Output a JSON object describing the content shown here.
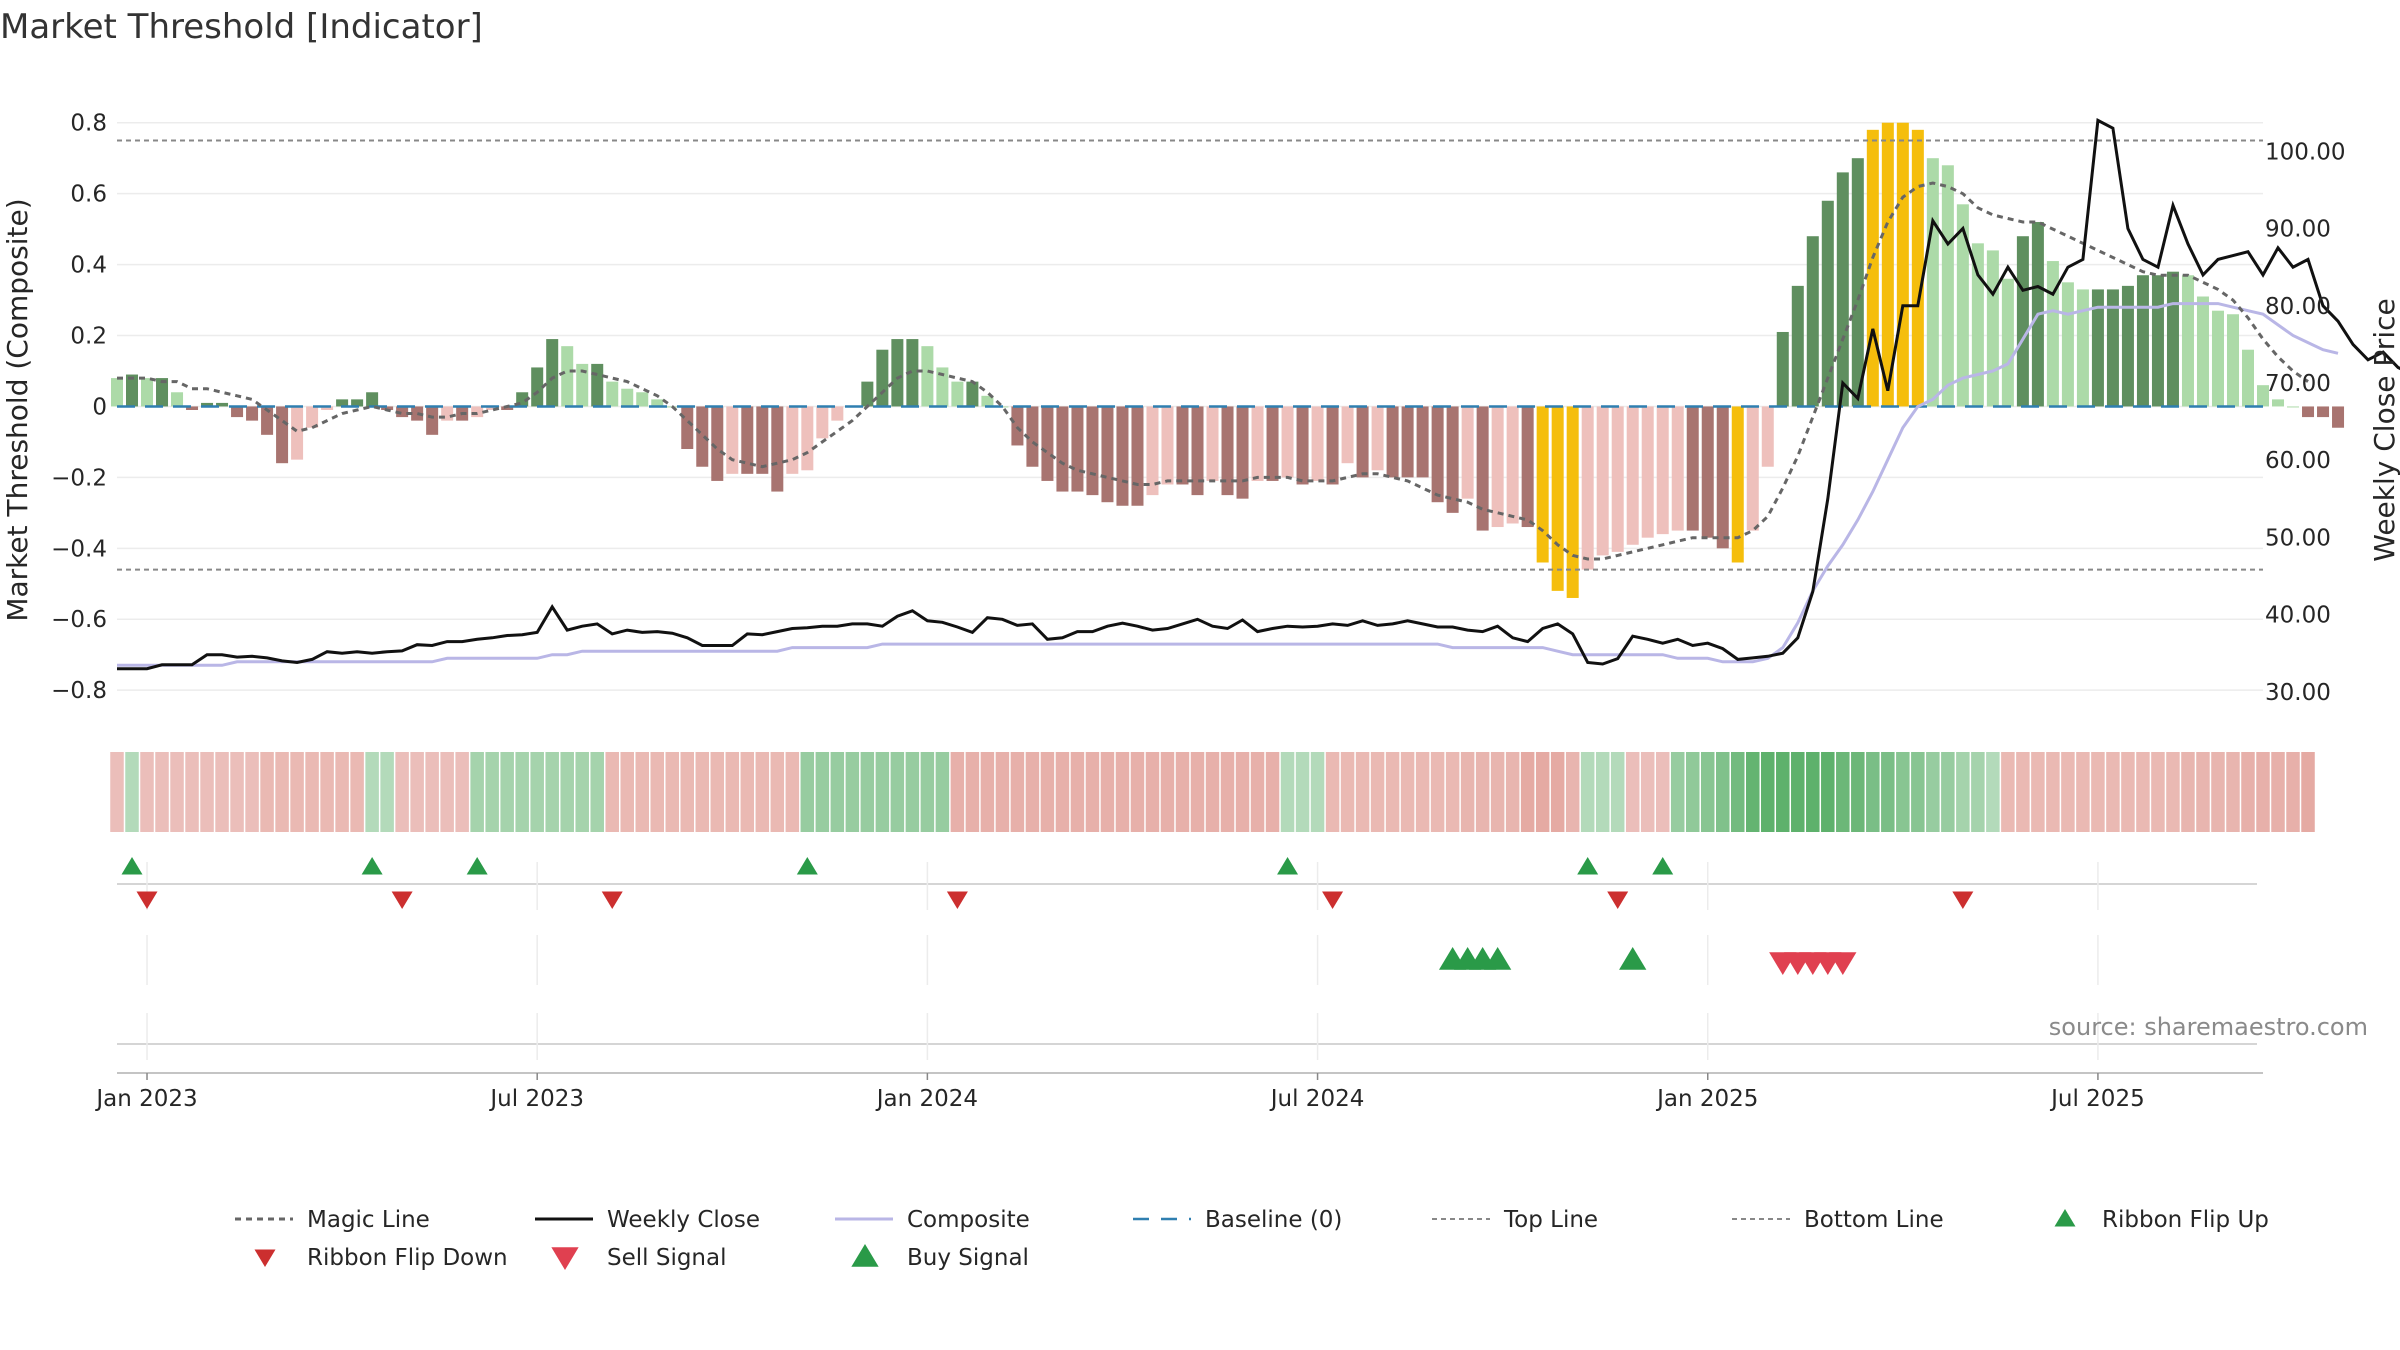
{
  "title": "Market Threshold [Indicator]",
  "source": "source: sharemaestro.com",
  "chart_data": {
    "type": "bar",
    "title": "Market Threshold [Indicator]",
    "ylabel_left": "Market Threshold (Composite)",
    "ylabel_right": "Weekly Close Price",
    "ylim_left": [
      -0.87,
      0.85
    ],
    "ylim_right": [
      27.0,
      106.0
    ],
    "y_ticks_left": [
      {
        "v": 0.8,
        "label": "0.8"
      },
      {
        "v": 0.6,
        "label": "0.6"
      },
      {
        "v": 0.4,
        "label": "0.4"
      },
      {
        "v": 0.2,
        "label": "0.2"
      },
      {
        "v": 0,
        "label": "0"
      },
      {
        "v": -0.2,
        "label": "−0.2"
      },
      {
        "v": -0.4,
        "label": "−0.4"
      },
      {
        "v": -0.6,
        "label": "−0.6"
      },
      {
        "v": -0.8,
        "label": "−0.8"
      }
    ],
    "y_ticks_right": [
      {
        "v": 100,
        "label": "100.00"
      },
      {
        "v": 90,
        "label": "90.00"
      },
      {
        "v": 80,
        "label": "80.00"
      },
      {
        "v": 70,
        "label": "70.00"
      },
      {
        "v": 60,
        "label": "60.00"
      },
      {
        "v": 50,
        "label": "50.00"
      },
      {
        "v": 40,
        "label": "40.00"
      },
      {
        "v": 30,
        "label": "30.00"
      }
    ],
    "x_ticks": [
      {
        "week": 2,
        "label": "Jan 2023"
      },
      {
        "week": 28,
        "label": "Jul 2023"
      },
      {
        "week": 54,
        "label": "Jan 2024"
      },
      {
        "week": 80,
        "label": "Jul 2024"
      },
      {
        "week": 106,
        "label": "Jan 2025"
      },
      {
        "week": 132,
        "label": "Jul 2025"
      }
    ],
    "x_range_weeks": [
      0,
      143
    ],
    "top_line": 0.75,
    "bottom_line": -0.46,
    "grid": true,
    "colors": {
      "pos_strong": "#5f8f5f",
      "pos_weak": "#acdaa8",
      "neg_strong": "#a87470",
      "neg_weak": "#eec0bc",
      "extreme": "#f5be0c",
      "weekly_close": "#111111",
      "composite": "#b9b6e6",
      "magic": "#666666",
      "baseline": "#2f7fb0",
      "threshold": "#888888",
      "flip_up": "#2a9a48",
      "flip_down": "#cc2f2f",
      "buy": "#2a9a48",
      "sell": "#e04050",
      "ribbon_green": "#42a352",
      "ribbon_red": "#d6786e"
    },
    "composite_bars": [
      0.08,
      0.09,
      0.08,
      0.08,
      0.04,
      -0.01,
      0.01,
      0.01,
      -0.03,
      -0.04,
      -0.08,
      -0.16,
      -0.15,
      -0.06,
      -0.01,
      0.02,
      0.02,
      0.04,
      -0.01,
      -0.03,
      -0.04,
      -0.08,
      -0.04,
      -0.04,
      -0.03,
      -0.01,
      -0.01,
      0.04,
      0.11,
      0.19,
      0.17,
      0.12,
      0.12,
      0.07,
      0.05,
      0.04,
      0.02,
      0.0,
      -0.12,
      -0.17,
      -0.21,
      -0.19,
      -0.19,
      -0.19,
      -0.24,
      -0.19,
      -0.18,
      -0.09,
      -0.04,
      0.0,
      0.07,
      0.16,
      0.19,
      0.19,
      0.17,
      0.11,
      0.07,
      0.07,
      0.03,
      0.0,
      -0.11,
      -0.17,
      -0.21,
      -0.24,
      -0.24,
      -0.25,
      -0.27,
      -0.28,
      -0.28,
      -0.25,
      -0.22,
      -0.22,
      -0.25,
      -0.21,
      -0.25,
      -0.26,
      -0.21,
      -0.21,
      -0.2,
      -0.22,
      -0.21,
      -0.22,
      -0.16,
      -0.2,
      -0.18,
      -0.2,
      -0.2,
      -0.2,
      -0.27,
      -0.3,
      -0.26,
      -0.35,
      -0.34,
      -0.33,
      -0.34,
      -0.44,
      -0.52,
      -0.54,
      -0.46,
      -0.42,
      -0.41,
      -0.39,
      -0.37,
      -0.36,
      -0.35,
      -0.35,
      -0.37,
      -0.4,
      -0.44,
      -0.35,
      -0.17,
      0.21,
      0.34,
      0.48,
      0.58,
      0.66,
      0.7,
      0.78,
      0.8,
      0.8,
      0.78,
      0.7,
      0.68,
      0.57,
      0.46,
      0.44,
      0.36,
      0.48,
      0.52,
      0.41,
      0.35,
      0.33,
      0.33,
      0.33,
      0.34,
      0.37,
      0.37,
      0.38,
      0.37,
      0.31,
      0.27,
      0.26,
      0.16,
      0.06,
      0.02,
      0.0,
      -0.03,
      -0.03,
      -0.06
    ],
    "magic_line": [
      0.08,
      0.08,
      0.08,
      0.07,
      0.07,
      0.05,
      0.05,
      0.04,
      0.03,
      0.02,
      -0.01,
      -0.04,
      -0.07,
      -0.06,
      -0.04,
      -0.02,
      -0.01,
      0.0,
      -0.01,
      -0.02,
      -0.02,
      -0.03,
      -0.03,
      -0.02,
      -0.02,
      -0.01,
      0.0,
      0.01,
      0.04,
      0.08,
      0.1,
      0.1,
      0.09,
      0.08,
      0.07,
      0.05,
      0.03,
      0.0,
      -0.04,
      -0.08,
      -0.12,
      -0.15,
      -0.16,
      -0.17,
      -0.16,
      -0.15,
      -0.13,
      -0.1,
      -0.07,
      -0.04,
      0.0,
      0.04,
      0.08,
      0.1,
      0.1,
      0.09,
      0.08,
      0.07,
      0.04,
      0.0,
      -0.06,
      -0.1,
      -0.13,
      -0.16,
      -0.18,
      -0.19,
      -0.2,
      -0.21,
      -0.22,
      -0.22,
      -0.21,
      -0.21,
      -0.21,
      -0.21,
      -0.21,
      -0.21,
      -0.2,
      -0.2,
      -0.2,
      -0.21,
      -0.21,
      -0.21,
      -0.2,
      -0.19,
      -0.19,
      -0.2,
      -0.21,
      -0.23,
      -0.25,
      -0.26,
      -0.27,
      -0.29,
      -0.3,
      -0.31,
      -0.32,
      -0.35,
      -0.39,
      -0.42,
      -0.43,
      -0.43,
      -0.42,
      -0.41,
      -0.4,
      -0.39,
      -0.38,
      -0.37,
      -0.37,
      -0.37,
      -0.37,
      -0.35,
      -0.31,
      -0.23,
      -0.14,
      -0.03,
      0.08,
      0.19,
      0.3,
      0.42,
      0.52,
      0.59,
      0.62,
      0.63,
      0.62,
      0.6,
      0.56,
      0.54,
      0.53,
      0.52,
      0.52,
      0.5,
      0.48,
      0.46,
      0.44,
      0.42,
      0.4,
      0.38,
      0.37,
      0.37,
      0.37,
      0.35,
      0.33,
      0.3,
      0.25,
      0.19,
      0.14,
      0.1,
      0.07
    ],
    "composite_line": [
      -0.73,
      -0.73,
      -0.73,
      -0.73,
      -0.73,
      -0.73,
      -0.73,
      -0.73,
      -0.72,
      -0.72,
      -0.72,
      -0.72,
      -0.72,
      -0.72,
      -0.72,
      -0.72,
      -0.72,
      -0.72,
      -0.72,
      -0.72,
      -0.72,
      -0.72,
      -0.71,
      -0.71,
      -0.71,
      -0.71,
      -0.71,
      -0.71,
      -0.71,
      -0.7,
      -0.7,
      -0.69,
      -0.69,
      -0.69,
      -0.69,
      -0.69,
      -0.69,
      -0.69,
      -0.69,
      -0.69,
      -0.69,
      -0.69,
      -0.69,
      -0.69,
      -0.69,
      -0.68,
      -0.68,
      -0.68,
      -0.68,
      -0.68,
      -0.68,
      -0.67,
      -0.67,
      -0.67,
      -0.67,
      -0.67,
      -0.67,
      -0.67,
      -0.67,
      -0.67,
      -0.67,
      -0.67,
      -0.67,
      -0.67,
      -0.67,
      -0.67,
      -0.67,
      -0.67,
      -0.67,
      -0.67,
      -0.67,
      -0.67,
      -0.67,
      -0.67,
      -0.67,
      -0.67,
      -0.67,
      -0.67,
      -0.67,
      -0.67,
      -0.67,
      -0.67,
      -0.67,
      -0.67,
      -0.67,
      -0.67,
      -0.67,
      -0.67,
      -0.67,
      -0.68,
      -0.68,
      -0.68,
      -0.68,
      -0.68,
      -0.68,
      -0.68,
      -0.69,
      -0.7,
      -0.7,
      -0.7,
      -0.7,
      -0.7,
      -0.7,
      -0.7,
      -0.71,
      -0.71,
      -0.71,
      -0.72,
      -0.72,
      -0.72,
      -0.71,
      -0.68,
      -0.61,
      -0.52,
      -0.45,
      -0.39,
      -0.32,
      -0.24,
      -0.15,
      -0.06,
      0.0,
      0.02,
      0.06,
      0.08,
      0.09,
      0.1,
      0.12,
      0.19,
      0.26,
      0.27,
      0.26,
      0.27,
      0.28,
      0.28,
      0.28,
      0.28,
      0.28,
      0.29,
      0.29,
      0.29,
      0.29,
      0.28,
      0.27,
      0.26,
      0.23,
      0.2,
      0.18,
      0.16,
      0.15
    ],
    "weekly_close": [
      33.0,
      33.0,
      33.0,
      33.5,
      33.5,
      33.5,
      34.8,
      34.8,
      34.5,
      34.6,
      34.4,
      34.0,
      33.8,
      34.2,
      35.2,
      35.0,
      35.2,
      35.0,
      35.2,
      35.3,
      36.1,
      36.0,
      36.5,
      36.5,
      36.8,
      37.0,
      37.3,
      37.4,
      37.7,
      41.0,
      38.0,
      38.5,
      38.8,
      37.5,
      38.0,
      37.7,
      37.8,
      37.6,
      37.0,
      36.0,
      36.0,
      36.0,
      37.5,
      37.4,
      37.8,
      38.2,
      38.3,
      38.5,
      38.5,
      38.8,
      38.8,
      38.5,
      39.8,
      40.5,
      39.2,
      39.0,
      38.4,
      37.7,
      39.6,
      39.4,
      38.6,
      38.8,
      36.8,
      37.0,
      37.8,
      37.8,
      38.5,
      38.9,
      38.5,
      38.0,
      38.2,
      38.8,
      39.4,
      38.5,
      38.2,
      39.3,
      37.8,
      38.2,
      38.5,
      38.4,
      38.5,
      38.8,
      38.6,
      39.2,
      38.6,
      38.8,
      39.2,
      38.8,
      38.4,
      38.4,
      38.0,
      37.8,
      38.5,
      37.0,
      36.5,
      38.2,
      38.8,
      37.5,
      33.8,
      33.6,
      34.3,
      37.2,
      36.8,
      36.3,
      36.8,
      36.0,
      36.3,
      35.6,
      34.2,
      34.4,
      34.6,
      35.0,
      37.0,
      43.0,
      55.0,
      70.0,
      68.0,
      77.0,
      69.0,
      80.0,
      80.0,
      91.0,
      88.0,
      90.0,
      84.0,
      81.5,
      85.0,
      82.0,
      82.5,
      81.5,
      85.0,
      86.0,
      104.0,
      103.0,
      90.0,
      86.0,
      85.0,
      93.0,
      88.0,
      84.0,
      86.0,
      86.5,
      87.0,
      84.0,
      87.5,
      85.0,
      86.0,
      80.0,
      78.0,
      75.0,
      73.0,
      74.0,
      72.0,
      71.0,
      73.0,
      72.5
    ]
  },
  "signals": {
    "ribbon_flip_up": [
      1,
      17,
      24,
      46,
      78,
      98,
      103
    ],
    "ribbon_flip_down": [
      2,
      19,
      33,
      56,
      81,
      100,
      123
    ],
    "buy_signal": [
      89,
      90,
      91,
      92,
      101
    ],
    "sell_signal": [
      111,
      112,
      113,
      114,
      115
    ]
  },
  "ribbon": [
    -0.4,
    0.3,
    -0.4,
    -0.4,
    -0.4,
    -0.4,
    -0.4,
    -0.4,
    -0.4,
    -0.4,
    -0.45,
    -0.45,
    -0.45,
    -0.45,
    -0.45,
    -0.45,
    -0.45,
    0.3,
    0.3,
    -0.4,
    -0.4,
    -0.4,
    -0.4,
    -0.4,
    0.4,
    0.4,
    0.4,
    0.4,
    0.4,
    0.4,
    0.4,
    0.4,
    0.4,
    -0.45,
    -0.45,
    -0.45,
    -0.45,
    -0.45,
    -0.45,
    -0.45,
    -0.45,
    -0.45,
    -0.45,
    -0.45,
    -0.45,
    -0.45,
    0.5,
    0.5,
    0.5,
    0.5,
    0.5,
    0.5,
    0.5,
    0.5,
    0.5,
    0.5,
    -0.55,
    -0.55,
    -0.55,
    -0.55,
    -0.55,
    -0.55,
    -0.55,
    -0.55,
    -0.55,
    -0.55,
    -0.55,
    -0.55,
    -0.55,
    -0.55,
    -0.55,
    -0.55,
    -0.55,
    -0.55,
    -0.55,
    -0.55,
    -0.55,
    -0.55,
    0.3,
    0.3,
    0.3,
    -0.45,
    -0.45,
    -0.45,
    -0.45,
    -0.45,
    -0.45,
    -0.45,
    -0.45,
    -0.45,
    -0.5,
    -0.5,
    -0.5,
    -0.5,
    -0.6,
    -0.6,
    -0.6,
    -0.5,
    0.3,
    0.3,
    0.3,
    -0.4,
    -0.4,
    -0.4,
    0.5,
    0.55,
    0.6,
    0.65,
    0.75,
    0.85,
    0.9,
    0.9,
    0.9,
    0.9,
    0.9,
    0.8,
    0.8,
    0.7,
    0.7,
    0.6,
    0.6,
    0.5,
    0.5,
    0.4,
    0.4,
    0.3,
    -0.45,
    -0.45,
    -0.45,
    -0.45,
    -0.45,
    -0.45,
    -0.45,
    -0.45,
    -0.45,
    -0.45,
    -0.45,
    -0.45,
    -0.5,
    -0.5,
    -0.5,
    -0.5,
    -0.55,
    -0.55,
    -0.55,
    -0.55,
    -0.6
  ],
  "legend": [
    {
      "key": "magic",
      "label": "Magic Line"
    },
    {
      "key": "close",
      "label": "Weekly Close"
    },
    {
      "key": "composite",
      "label": "Composite"
    },
    {
      "key": "baseline",
      "label": "Baseline (0)"
    },
    {
      "key": "top",
      "label": "Top Line"
    },
    {
      "key": "bottom",
      "label": "Bottom Line"
    },
    {
      "key": "flipup",
      "label": "Ribbon Flip Up"
    },
    {
      "key": "flipdown",
      "label": "Ribbon Flip Down"
    },
    {
      "key": "sell",
      "label": "Sell Signal"
    },
    {
      "key": "buy",
      "label": "Buy Signal"
    }
  ]
}
